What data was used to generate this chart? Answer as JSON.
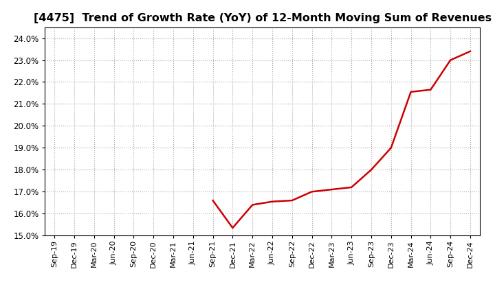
{
  "title": "[4475]  Trend of Growth Rate (YoY) of 12-Month Moving Sum of Revenues",
  "title_fontsize": 11.5,
  "line_color": "#CC0000",
  "line_width": 1.8,
  "background_color": "#FFFFFF",
  "grid_color": "#AAAAAA",
  "ylim": [
    0.15,
    0.245
  ],
  "yticks": [
    0.15,
    0.16,
    0.17,
    0.18,
    0.19,
    0.2,
    0.21,
    0.22,
    0.23,
    0.24
  ],
  "xlabels": [
    "Sep-19",
    "Dec-19",
    "Mar-20",
    "Jun-20",
    "Sep-20",
    "Dec-20",
    "Mar-21",
    "Jun-21",
    "Sep-21",
    "Dec-21",
    "Mar-22",
    "Jun-22",
    "Sep-22",
    "Dec-22",
    "Mar-23",
    "Jun-23",
    "Sep-23",
    "Dec-23",
    "Mar-24",
    "Jun-24",
    "Sep-24",
    "Dec-24"
  ],
  "data_x": [
    0,
    1,
    2,
    3,
    4,
    5,
    6,
    7,
    8,
    9,
    10,
    11,
    12,
    13,
    14,
    15,
    16,
    17,
    18,
    19,
    20,
    21
  ],
  "data_y": [
    null,
    null,
    null,
    null,
    null,
    null,
    null,
    null,
    0.166,
    0.1535,
    0.164,
    0.1655,
    0.166,
    0.17,
    0.171,
    0.172,
    0.18,
    0.19,
    0.2155,
    0.2165,
    0.23,
    0.234
  ]
}
